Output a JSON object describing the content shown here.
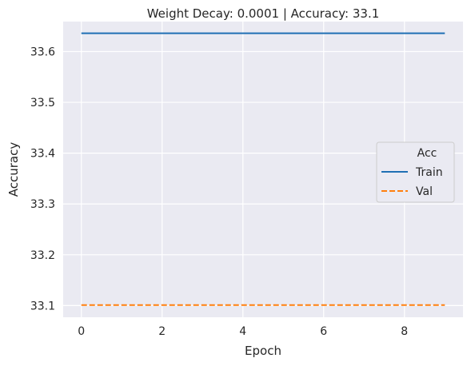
{
  "chart_data": {
    "type": "line",
    "title": "Weight Decay: 0.0001 | Accuracy: 33.1",
    "xlabel": "Epoch",
    "ylabel": "Accuracy",
    "xlim": [
      -0.45,
      9.45
    ],
    "ylim": [
      33.077,
      33.659
    ],
    "xticks": [
      0,
      2,
      4,
      6,
      8
    ],
    "yticks": [
      33.1,
      33.2,
      33.3,
      33.4,
      33.5,
      33.6
    ],
    "x": [
      0,
      1,
      2,
      3,
      4,
      5,
      6,
      7,
      8,
      9
    ],
    "series": [
      {
        "name": "Train",
        "values": [
          33.636,
          33.636,
          33.636,
          33.636,
          33.636,
          33.636,
          33.636,
          33.636,
          33.636,
          33.636
        ],
        "color": "#1f6fb4",
        "dash": "solid"
      },
      {
        "name": "Val",
        "values": [
          33.101,
          33.101,
          33.101,
          33.101,
          33.101,
          33.101,
          33.101,
          33.101,
          33.101,
          33.101
        ],
        "color": "#ff7f0e",
        "dash": "dashed"
      }
    ],
    "legend": {
      "title": "Acc",
      "placement": "right"
    },
    "grid": true,
    "background": "#eaeaf2"
  }
}
